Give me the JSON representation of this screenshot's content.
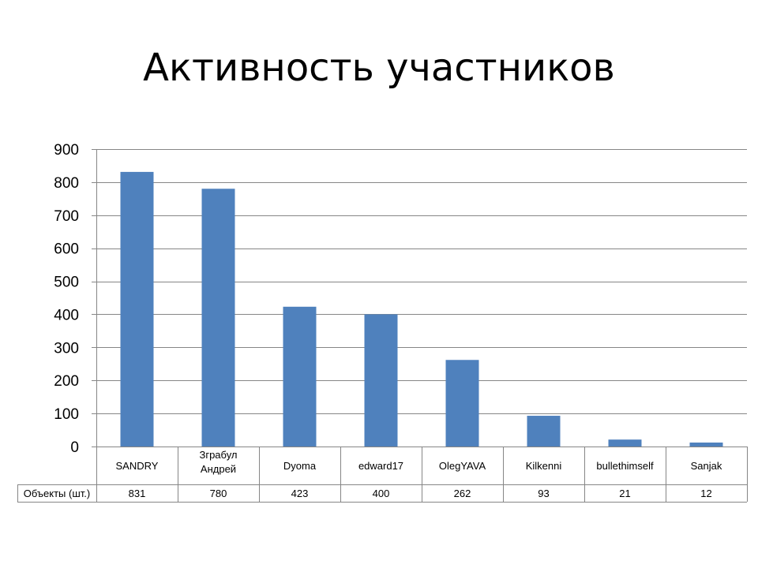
{
  "slide": {
    "title": "Активность участников"
  },
  "chart_data": {
    "type": "bar",
    "categories": [
      "SANDRY",
      "Зграбул Андрей",
      "Dyoma",
      "edward17",
      "OlegYAVA",
      "Kilkenni",
      "bullethimself",
      "Sanjak"
    ],
    "series": [
      {
        "name": "Объекты (шт.)",
        "values": [
          831,
          780,
          423,
          400,
          262,
          93,
          21,
          12
        ],
        "color": "#4F81BD"
      }
    ],
    "ylim": [
      0,
      900
    ],
    "yticks": [
      0,
      100,
      200,
      300,
      400,
      500,
      600,
      700,
      800,
      900
    ],
    "grid": true,
    "data_table": true,
    "colors": {
      "bar": "#4F81BD",
      "grid": "#868686",
      "text": "#000000"
    }
  }
}
